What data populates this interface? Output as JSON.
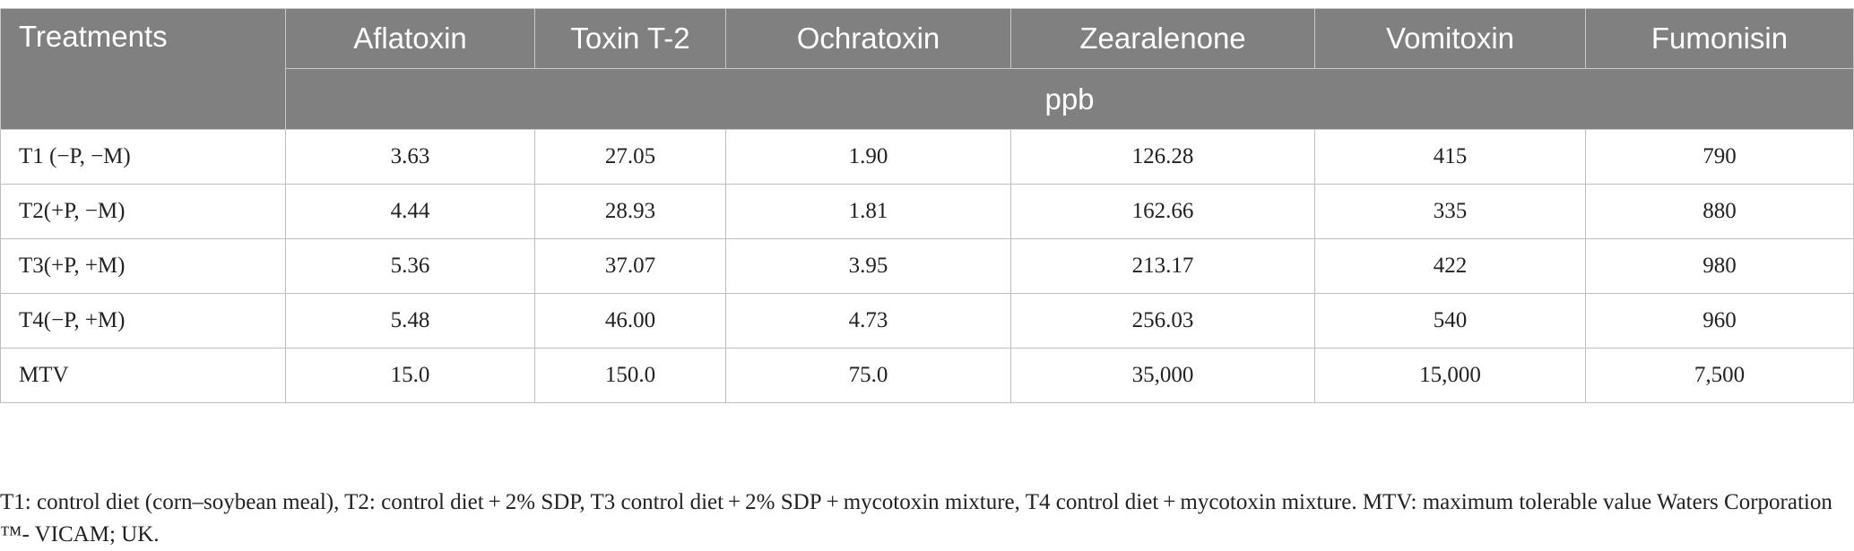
{
  "table": {
    "header": {
      "first": "Treatments",
      "columns": [
        "Aflatoxin",
        "Toxin T-2",
        "Ochratoxin",
        "Zearalenone",
        "Vomitoxin",
        "Fumonisin"
      ],
      "units": "ppb"
    },
    "rows": [
      {
        "label": "T1 (−P, −M)",
        "values": [
          "3.63",
          "27.05",
          "1.90",
          "126.28",
          "415",
          "790"
        ]
      },
      {
        "label": "T2(+P, −M)",
        "values": [
          "4.44",
          "28.93",
          "1.81",
          "162.66",
          "335",
          "880"
        ]
      },
      {
        "label": "T3(+P, +M)",
        "values": [
          "5.36",
          "37.07",
          "3.95",
          "213.17",
          "422",
          "980"
        ]
      },
      {
        "label": "T4(−P, +M)",
        "values": [
          "5.48",
          "46.00",
          "4.73",
          "256.03",
          "540",
          "960"
        ]
      },
      {
        "label": "MTV",
        "values": [
          "15.0",
          "150.0",
          "75.0",
          "35,000",
          "15,000",
          "7,500"
        ]
      }
    ]
  },
  "footnote": "T1: control diet (corn–soybean meal), T2: control diet + 2% SDP, T3 control diet + 2% SDP + mycotoxin mixture, T4 control diet + mycotoxin mixture. MTV: maximum tolerable value Waters Corporation ™- VICAM; UK."
}
